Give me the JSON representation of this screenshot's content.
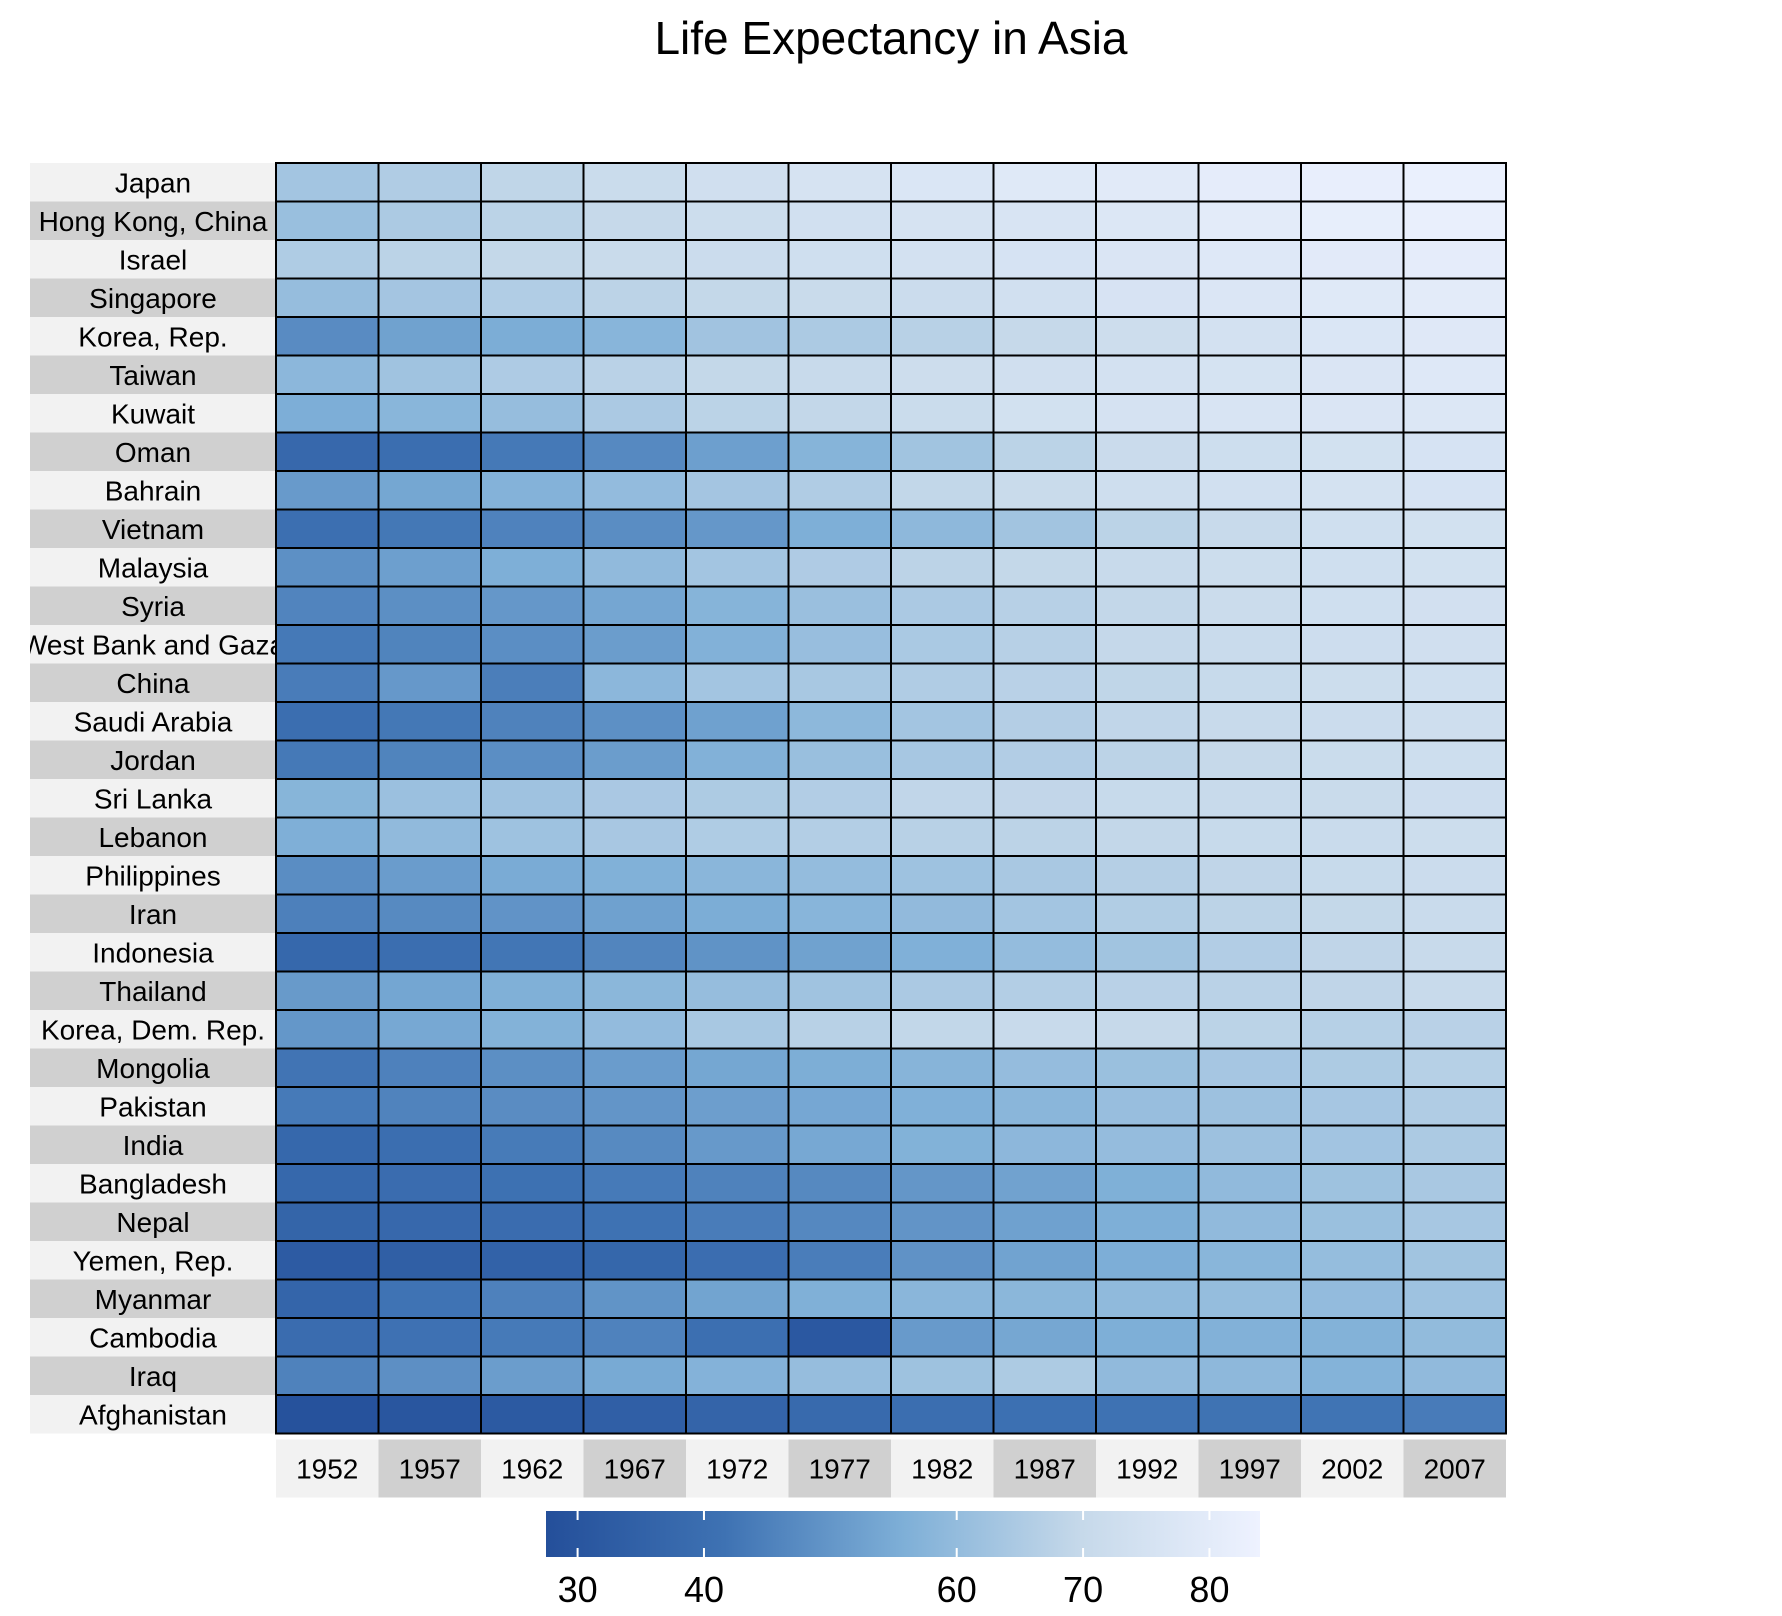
{
  "chart_data": {
    "type": "heatmap",
    "title": "Life Expectancy in Asia",
    "xlabel": "",
    "ylabel": "",
    "x": [
      "1952",
      "1957",
      "1962",
      "1967",
      "1972",
      "1977",
      "1982",
      "1987",
      "1992",
      "1997",
      "2002",
      "2007"
    ],
    "y": [
      "Japan",
      "Hong Kong, China",
      "Israel",
      "Singapore",
      "Korea, Rep.",
      "Taiwan",
      "Kuwait",
      "Oman",
      "Bahrain",
      "Vietnam",
      "Malaysia",
      "Syria",
      "West Bank and Gaza",
      "China",
      "Saudi Arabia",
      "Jordan",
      "Sri Lanka",
      "Lebanon",
      "Philippines",
      "Iran",
      "Indonesia",
      "Thailand",
      "Korea, Dem. Rep.",
      "Mongolia",
      "Pakistan",
      "India",
      "Bangladesh",
      "Nepal",
      "Yemen, Rep.",
      "Myanmar",
      "Cambodia",
      "Iraq",
      "Afghanistan"
    ],
    "values": [
      [
        63.0,
        65.5,
        68.7,
        71.4,
        73.4,
        75.4,
        77.1,
        78.7,
        79.4,
        80.7,
        82.0,
        82.6
      ],
      [
        61.0,
        64.8,
        67.7,
        70.0,
        72.0,
        73.6,
        75.5,
        76.2,
        77.6,
        80.0,
        81.5,
        82.2
      ],
      [
        65.4,
        67.8,
        69.4,
        70.8,
        71.6,
        73.1,
        74.5,
        75.6,
        76.9,
        78.3,
        79.7,
        80.7
      ],
      [
        60.4,
        63.2,
        65.8,
        67.9,
        69.5,
        70.8,
        71.8,
        73.6,
        75.8,
        77.2,
        78.8,
        80.0
      ],
      [
        47.5,
        52.7,
        55.3,
        57.7,
        62.6,
        64.8,
        67.1,
        69.8,
        72.2,
        74.6,
        77.0,
        78.6
      ],
      [
        58.5,
        62.4,
        65.2,
        67.5,
        69.4,
        70.6,
        72.2,
        73.4,
        74.3,
        75.3,
        76.9,
        78.4
      ],
      [
        55.6,
        58.0,
        60.5,
        64.6,
        67.7,
        69.3,
        71.3,
        74.2,
        75.2,
        76.2,
        76.9,
        77.6
      ],
      [
        37.6,
        40.1,
        43.2,
        47.0,
        52.1,
        57.4,
        62.7,
        67.7,
        71.2,
        72.5,
        74.2,
        75.6
      ],
      [
        50.9,
        53.8,
        56.9,
        59.9,
        63.3,
        65.6,
        69.1,
        70.8,
        72.6,
        73.9,
        74.8,
        75.6
      ],
      [
        40.4,
        42.9,
        45.4,
        47.8,
        50.3,
        55.8,
        58.8,
        62.8,
        67.7,
        70.7,
        73.0,
        74.2
      ],
      [
        48.5,
        52.1,
        55.7,
        59.4,
        63.0,
        65.3,
        68.0,
        69.5,
        70.7,
        71.9,
        73.0,
        74.2
      ],
      [
        45.9,
        48.3,
        50.3,
        53.7,
        57.3,
        61.2,
        64.6,
        67.0,
        69.2,
        71.5,
        73.1,
        74.1
      ],
      [
        43.2,
        45.7,
        48.1,
        51.6,
        56.5,
        60.8,
        64.4,
        67.0,
        69.7,
        71.1,
        72.4,
        73.4
      ],
      [
        44.0,
        50.5,
        44.5,
        58.4,
        63.1,
        64.0,
        65.5,
        67.3,
        68.7,
        70.4,
        72.0,
        73.0
      ],
      [
        40.0,
        42.9,
        45.3,
        48.5,
        52.5,
        58.7,
        63.0,
        66.3,
        68.8,
        70.5,
        71.6,
        72.8
      ],
      [
        43.2,
        45.7,
        48.1,
        51.6,
        56.5,
        61.1,
        63.7,
        65.9,
        68.0,
        69.8,
        71.3,
        72.5
      ],
      [
        57.6,
        61.5,
        62.2,
        64.3,
        65.0,
        65.9,
        68.8,
        69.0,
        70.4,
        70.5,
        70.8,
        72.4
      ],
      [
        55.9,
        59.5,
        62.1,
        63.9,
        65.4,
        66.1,
        67.1,
        67.9,
        69.3,
        70.3,
        71.0,
        72.0
      ],
      [
        47.8,
        51.3,
        54.8,
        56.4,
        58.1,
        60.1,
        62.1,
        64.2,
        66.5,
        68.6,
        70.3,
        71.7
      ],
      [
        44.9,
        47.2,
        49.3,
        52.5,
        55.2,
        57.7,
        59.6,
        63.0,
        65.7,
        68.0,
        69.5,
        71.0
      ],
      [
        37.5,
        39.9,
        42.5,
        46.0,
        49.2,
        52.7,
        56.2,
        60.1,
        62.7,
        66.0,
        68.6,
        70.7
      ],
      [
        50.8,
        53.6,
        56.1,
        58.3,
        60.4,
        62.5,
        64.6,
        66.1,
        67.3,
        67.5,
        68.6,
        70.6
      ],
      [
        50.1,
        54.1,
        56.7,
        59.9,
        64.0,
        67.2,
        69.1,
        70.6,
        70.0,
        67.7,
        66.7,
        67.3
      ],
      [
        42.2,
        45.2,
        48.3,
        51.3,
        53.8,
        55.5,
        57.5,
        60.2,
        61.3,
        63.6,
        65.0,
        66.8
      ],
      [
        43.4,
        45.6,
        47.7,
        49.8,
        51.9,
        54.0,
        56.2,
        58.2,
        60.8,
        61.8,
        63.6,
        65.5
      ],
      [
        37.4,
        40.2,
        43.6,
        47.2,
        50.7,
        54.2,
        56.6,
        58.6,
        60.2,
        61.8,
        62.9,
        64.7
      ],
      [
        37.5,
        39.3,
        41.2,
        43.5,
        45.3,
        46.9,
        50.0,
        52.8,
        56.0,
        59.4,
        62.0,
        64.1
      ],
      [
        36.2,
        37.7,
        39.4,
        41.5,
        44.0,
        46.7,
        49.6,
        52.5,
        55.7,
        59.4,
        61.3,
        63.8
      ],
      [
        32.5,
        33.9,
        35.2,
        37.0,
        39.8,
        44.2,
        49.1,
        52.9,
        55.6,
        58.0,
        60.3,
        62.7
      ],
      [
        36.3,
        41.9,
        45.1,
        49.4,
        53.1,
        56.1,
        58.1,
        58.3,
        59.3,
        60.3,
        59.9,
        62.1
      ],
      [
        39.4,
        41.4,
        43.4,
        45.4,
        40.3,
        31.2,
        51.0,
        53.9,
        55.8,
        56.5,
        56.8,
        59.7
      ],
      [
        45.3,
        48.4,
        51.5,
        54.5,
        56.9,
        60.4,
        62.0,
        65.0,
        59.5,
        58.8,
        57.0,
        59.5
      ],
      [
        28.8,
        30.3,
        32.0,
        34.0,
        36.1,
        38.4,
        39.9,
        40.8,
        41.7,
        41.8,
        42.1,
        43.8
      ]
    ],
    "color_scale": {
      "ticks": [
        30,
        40,
        60,
        70,
        80
      ],
      "domain": [
        27.5,
        84
      ],
      "colors": [
        "#244f9a",
        "#3e72b3",
        "#7eafd7",
        "#c6d9ea",
        "#eef2ff"
      ]
    },
    "legend_position": "bottom",
    "grid": false
  }
}
